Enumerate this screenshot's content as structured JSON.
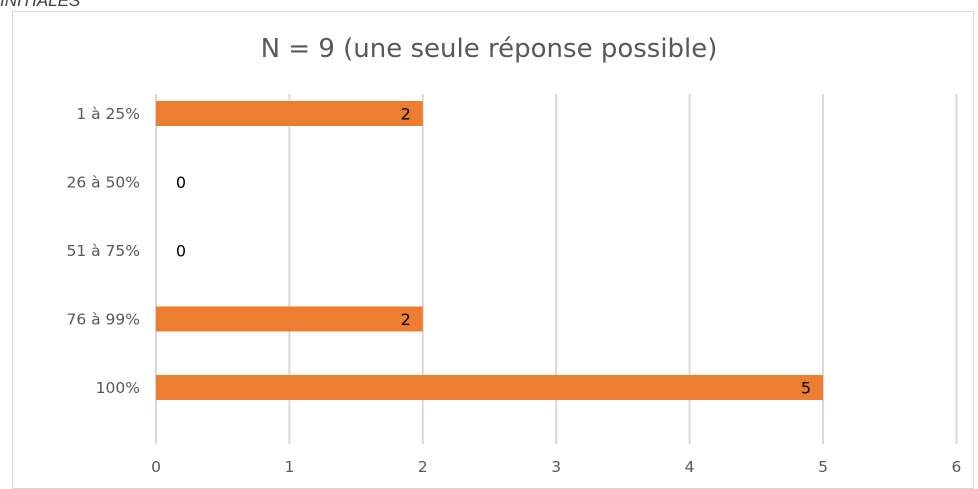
{
  "caption": "INITIALES",
  "chart_data": {
    "type": "bar",
    "orientation": "horizontal",
    "title": "N = 9 (une seule réponse possible)",
    "categories": [
      "1 à 25%",
      "26 à 50%",
      "51 à 75%",
      "76 à 99%",
      "100%"
    ],
    "values": [
      2,
      0,
      0,
      2,
      5
    ],
    "data_labels": [
      "2",
      "0",
      "0",
      "2",
      "5"
    ],
    "xlim": [
      0,
      6
    ],
    "x_ticks": [
      "0",
      "1",
      "2",
      "3",
      "4",
      "5",
      "6"
    ],
    "grid": true,
    "legend": "none",
    "bar_color": "#ED7D31",
    "grid_color": "#D9D9D9"
  }
}
